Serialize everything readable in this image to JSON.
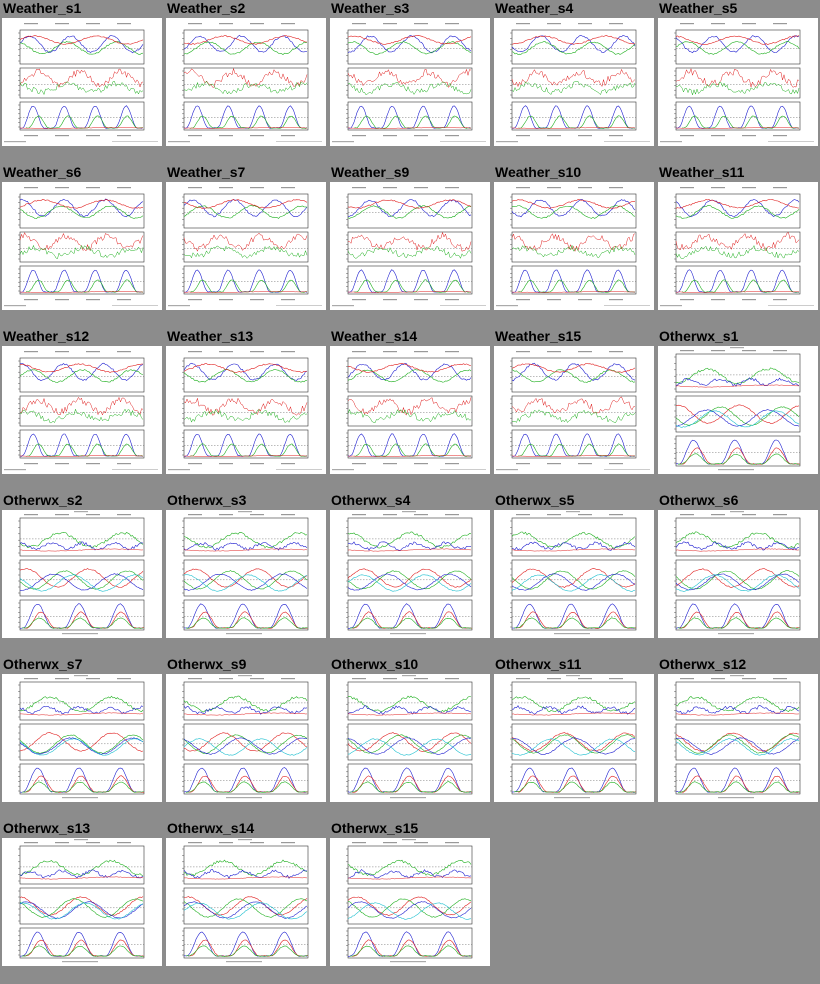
{
  "colors": {
    "background": "#8c8c8c",
    "red": "#e02020",
    "green": "#20b020",
    "blue": "#2020d0",
    "cyan": "#20c0d0",
    "magenta": "#e020e0"
  },
  "thumbnails": [
    {
      "title": "Weather_s1",
      "kind": "weather",
      "seed": 1
    },
    {
      "title": "Weather_s2",
      "kind": "weather",
      "seed": 2
    },
    {
      "title": "Weather_s3",
      "kind": "weather",
      "seed": 3
    },
    {
      "title": "Weather_s4",
      "kind": "weather",
      "seed": 4
    },
    {
      "title": "Weather_s5",
      "kind": "weather",
      "seed": 5
    },
    {
      "title": "Weather_s6",
      "kind": "weather",
      "seed": 6
    },
    {
      "title": "Weather_s7",
      "kind": "weather",
      "seed": 7
    },
    {
      "title": "Weather_s9",
      "kind": "weather",
      "seed": 9
    },
    {
      "title": "Weather_s10",
      "kind": "weather",
      "seed": 10
    },
    {
      "title": "Weather_s11",
      "kind": "weather",
      "seed": 11
    },
    {
      "title": "Weather_s12",
      "kind": "weather",
      "seed": 12
    },
    {
      "title": "Weather_s13",
      "kind": "weather",
      "seed": 13
    },
    {
      "title": "Weather_s14",
      "kind": "weather",
      "seed": 14
    },
    {
      "title": "Weather_s15",
      "kind": "weather",
      "seed": 15
    },
    {
      "title": "Otherwx_s1",
      "kind": "otherwx",
      "seed": 21
    },
    {
      "title": "Otherwx_s2",
      "kind": "otherwx",
      "seed": 22
    },
    {
      "title": "Otherwx_s3",
      "kind": "otherwx",
      "seed": 23
    },
    {
      "title": "Otherwx_s4",
      "kind": "otherwx",
      "seed": 24
    },
    {
      "title": "Otherwx_s5",
      "kind": "otherwx",
      "seed": 25
    },
    {
      "title": "Otherwx_s6",
      "kind": "otherwx",
      "seed": 26
    },
    {
      "title": "Otherwx_s7",
      "kind": "otherwx",
      "seed": 27
    },
    {
      "title": "Otherwx_s9",
      "kind": "otherwx",
      "seed": 29
    },
    {
      "title": "Otherwx_s10",
      "kind": "otherwx",
      "seed": 30
    },
    {
      "title": "Otherwx_s11",
      "kind": "otherwx",
      "seed": 31
    },
    {
      "title": "Otherwx_s12",
      "kind": "otherwx",
      "seed": 32
    },
    {
      "title": "Otherwx_s13",
      "kind": "otherwx",
      "seed": 33
    },
    {
      "title": "Otherwx_s14",
      "kind": "otherwx",
      "seed": 34
    },
    {
      "title": "Otherwx_s15",
      "kind": "otherwx",
      "seed": 35
    }
  ]
}
